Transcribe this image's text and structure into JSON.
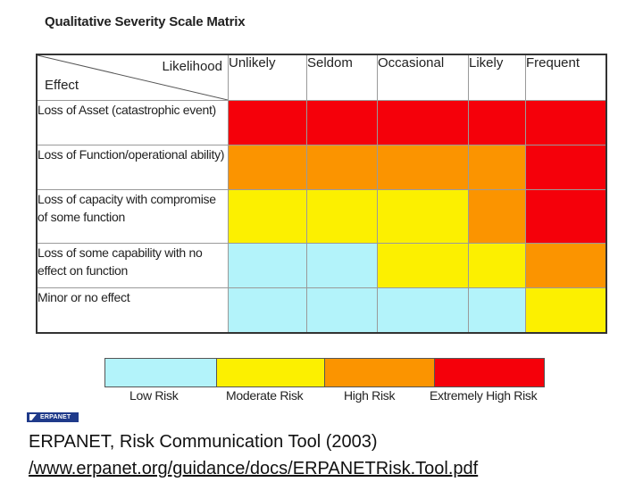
{
  "chart_data": {
    "type": "heatmap",
    "title": "Qualitative Severity Scale Matrix",
    "corner": {
      "column_axis_label": "Likelihood",
      "row_axis_label": "Effect"
    },
    "columns": [
      "Unlikely",
      "Seldom",
      "Occasional",
      "Likely",
      "Frequent"
    ],
    "rows": [
      "Loss of Asset (catastrophic event)",
      "Loss of Function/operational ability)",
      "Loss of capacity with compromise of some function",
      "Loss of some capability with no effect on function",
      "Minor or no effect"
    ],
    "cells": [
      [
        "Extremely High Risk",
        "Extremely High Risk",
        "Extremely High Risk",
        "Extremely High Risk",
        "Extremely High Risk"
      ],
      [
        "High Risk",
        "High Risk",
        "High Risk",
        "High Risk",
        "Extremely High Risk"
      ],
      [
        "Moderate Risk",
        "Moderate Risk",
        "Moderate Risk",
        "High Risk",
        "Extremely High Risk"
      ],
      [
        "Low Risk",
        "Low Risk",
        "Moderate Risk",
        "Moderate Risk",
        "High Risk"
      ],
      [
        "Low Risk",
        "Low Risk",
        "Low Risk",
        "Low Risk",
        "Moderate Risk"
      ]
    ],
    "legend": [
      {
        "label": "Low Risk",
        "color": "#b3f3fa"
      },
      {
        "label": "Moderate Risk",
        "color": "#fcf000"
      },
      {
        "label": "High Risk",
        "color": "#fb9400"
      },
      {
        "label": "Extremely High Risk",
        "color": "#f5000a"
      }
    ]
  },
  "footer": {
    "logo_text": "ERPANET",
    "citation": "ERPANET, Risk Communication Tool (2003)",
    "url": "/www.erpanet.org/guidance/docs/ERPANETRisk.Tool.pdf"
  }
}
